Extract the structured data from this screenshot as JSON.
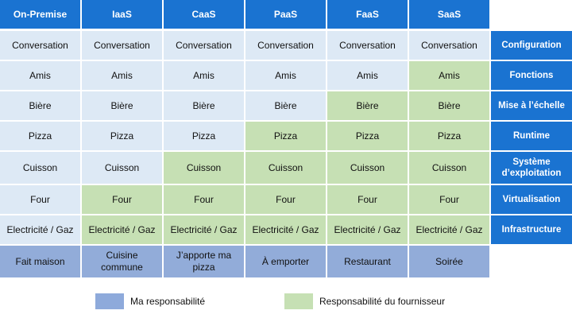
{
  "colors": {
    "header": "#1a73d1",
    "my_responsibility": "#dde9f5",
    "provider_responsibility": "#c6e0b4",
    "bottom_row": "#92acd9",
    "legend_mine": "#8eaadb",
    "legend_provider": "#c6e0b4"
  },
  "headers": [
    "On-Premise",
    "IaaS",
    "CaaS",
    "PaaS",
    "FaaS",
    "SaaS"
  ],
  "rows": [
    {
      "label": "Configuration",
      "value": "Conversation",
      "provider_from": 99
    },
    {
      "label": "Fonctions",
      "value": "Amis",
      "provider_from": 5
    },
    {
      "label": "Mise à l’échelle",
      "value": "Bière",
      "provider_from": 4
    },
    {
      "label": "Runtime",
      "value": "Pizza",
      "provider_from": 3
    },
    {
      "label": "Système d’exploitation",
      "value": "Cuisson",
      "provider_from": 2
    },
    {
      "label": "Virtualisation",
      "value": "Four",
      "provider_from": 1
    },
    {
      "label": "Infrastructure",
      "value": "Electricité / Gaz",
      "provider_from": 1
    }
  ],
  "bottom_row": [
    "Fait maison",
    "Cuisine commune",
    "J’apporte ma pizza",
    "À emporter",
    "Restaurant",
    "Soirée"
  ],
  "legend": {
    "mine": "Ma responsabilité",
    "provider": "Responsabilité du fournisseur"
  }
}
